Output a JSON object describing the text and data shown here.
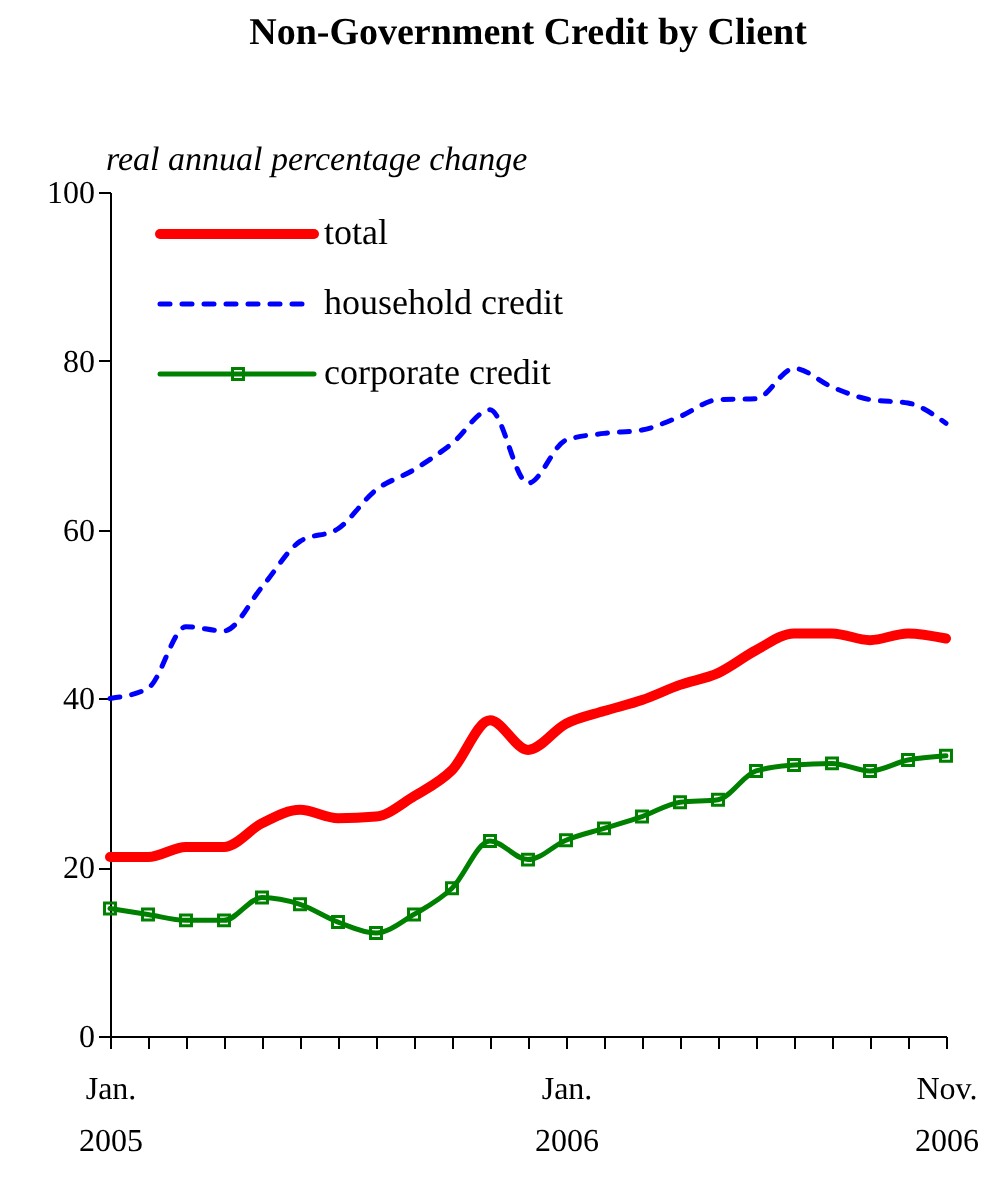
{
  "chart_data": {
    "type": "line",
    "title": "Non-Government Credit by Client",
    "ylabel": "real annual percentage change",
    "categories": [
      "Jan.\n2005",
      null,
      null,
      null,
      null,
      null,
      null,
      null,
      null,
      null,
      null,
      null,
      "Jan.\n2006",
      null,
      null,
      null,
      null,
      null,
      null,
      null,
      null,
      null,
      "Nov.\n2006"
    ],
    "series": [
      {
        "name": "total",
        "color": "#ff0000",
        "line_style": "solid",
        "marker": "none",
        "values": [
          21.2,
          21.2,
          22.4,
          22.4,
          25.2,
          26.8,
          25.8,
          26.0,
          28.4,
          31.5,
          37.4,
          33.9,
          37.0,
          38.5,
          39.8,
          41.6,
          43.0,
          45.7,
          47.7,
          47.7,
          46.9,
          47.7,
          47.1
        ]
      },
      {
        "name": "household credit",
        "color": "#0000ff",
        "line_style": "dashed",
        "marker": "none",
        "values": [
          40.0,
          41.2,
          48.5,
          48.0,
          53.2,
          58.6,
          60.1,
          64.7,
          67.1,
          70.2,
          74.2,
          65.5,
          70.6,
          71.4,
          71.8,
          73.4,
          75.4,
          75.5,
          79.1,
          76.9,
          75.4,
          75.0,
          72.6
        ]
      },
      {
        "name": "corporate credit",
        "color": "#008000",
        "line_style": "solid",
        "marker": "square",
        "values": [
          15.1,
          14.4,
          13.7,
          13.7,
          16.4,
          15.6,
          13.5,
          12.2,
          14.4,
          17.5,
          23.1,
          20.9,
          23.2,
          24.6,
          26.0,
          27.7,
          28.0,
          31.4,
          32.1,
          32.3,
          31.4,
          32.7,
          33.2
        ]
      }
    ],
    "ylim": [
      0,
      100
    ],
    "yticks": [
      0,
      20,
      40,
      60,
      80,
      100
    ],
    "grid": false,
    "legend": "top left"
  }
}
